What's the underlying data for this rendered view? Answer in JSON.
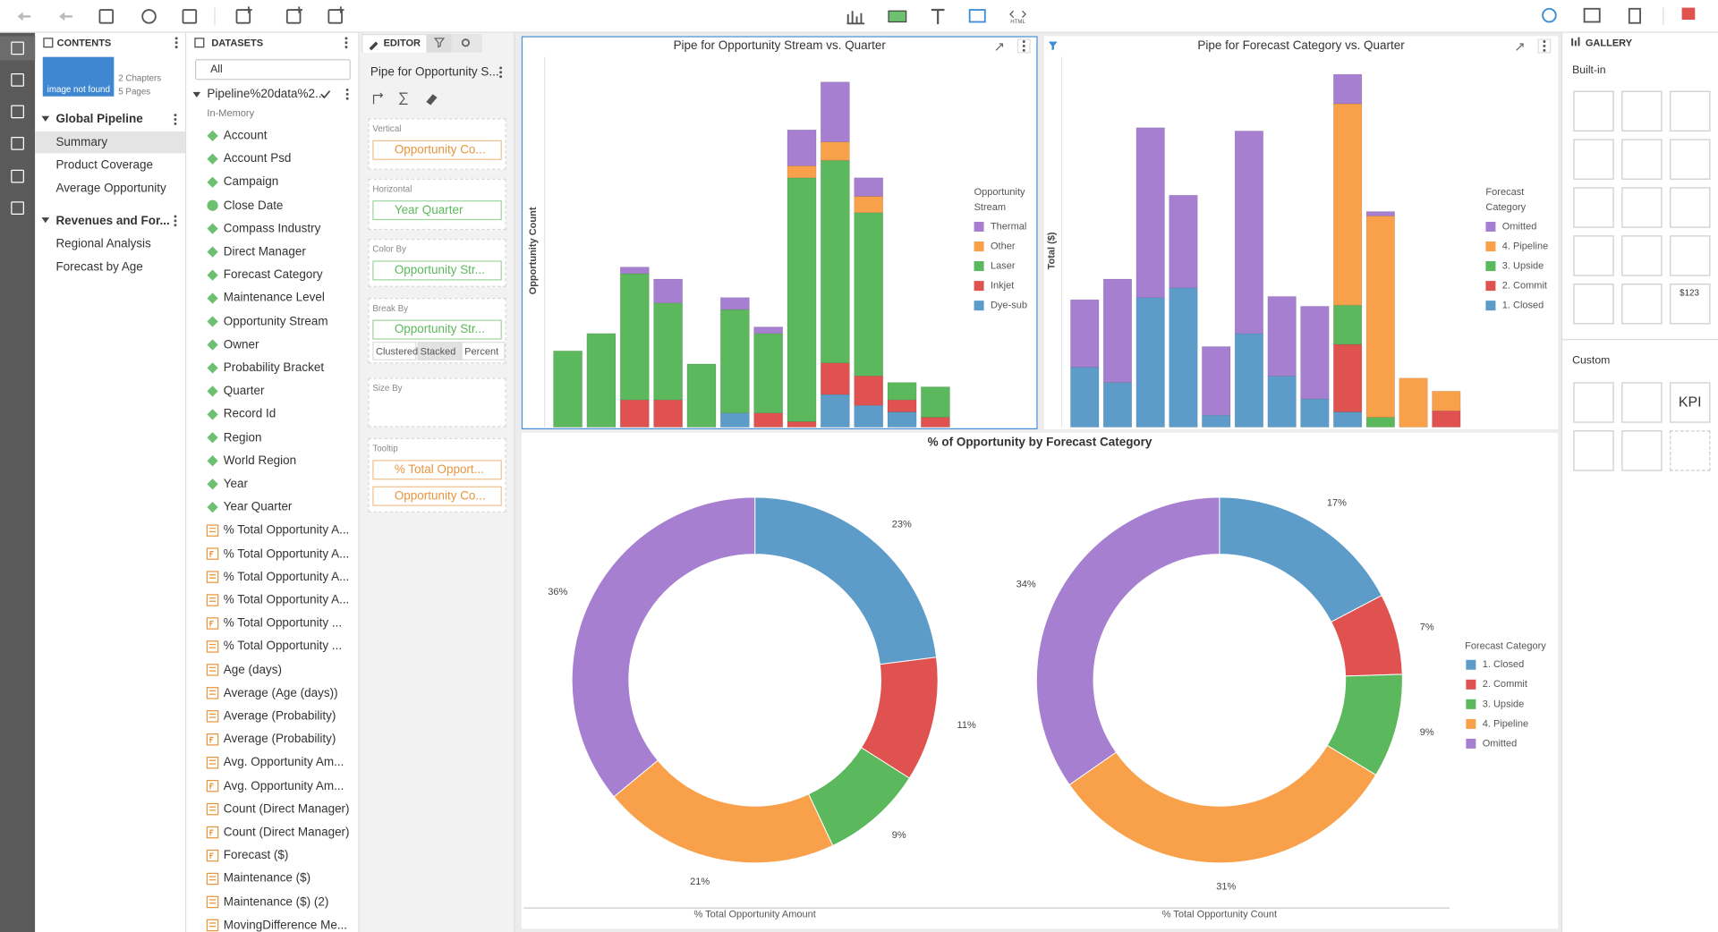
{
  "toolbar": {
    "html_label": "HTML"
  },
  "contents": {
    "title": "CONTENTS",
    "thumbnail": "image not found",
    "chapters_count": "2 Chapters",
    "pages_count": "5 Pages",
    "chapters": [
      {
        "name": "Global Pipeline",
        "pages": [
          "Summary",
          "Product Coverage",
          "Average Opportunity"
        ]
      },
      {
        "name": "Revenues and For...",
        "pages": [
          "Regional Analysis",
          "Forecast by Age"
        ]
      }
    ]
  },
  "datasets": {
    "title": "DATASETS",
    "filter": "All",
    "dataset": "Pipeline%20data%2...",
    "storage": "In-Memory",
    "fields": [
      {
        "name": "Account",
        "kind": "dimension"
      },
      {
        "name": "Account Psd",
        "kind": "dimension"
      },
      {
        "name": "Campaign",
        "kind": "dimension"
      },
      {
        "name": "Close Date",
        "kind": "date"
      },
      {
        "name": "Compass Industry",
        "kind": "dimension"
      },
      {
        "name": "Direct Manager",
        "kind": "dimension"
      },
      {
        "name": "Forecast Category",
        "kind": "dimension"
      },
      {
        "name": "Maintenance Level",
        "kind": "dimension"
      },
      {
        "name": "Opportunity Stream",
        "kind": "dimension"
      },
      {
        "name": "Owner",
        "kind": "dimension"
      },
      {
        "name": "Probability Bracket",
        "kind": "dimension"
      },
      {
        "name": "Quarter",
        "kind": "dimension"
      },
      {
        "name": "Record Id",
        "kind": "dimension"
      },
      {
        "name": "Region",
        "kind": "dimension"
      },
      {
        "name": "World Region",
        "kind": "dimension"
      },
      {
        "name": "Year",
        "kind": "dimension"
      },
      {
        "name": "Year Quarter",
        "kind": "dimension"
      },
      {
        "name": "% Total Opportunity A...",
        "kind": "measure"
      },
      {
        "name": "% Total Opportunity A...",
        "kind": "calc"
      },
      {
        "name": "% Total Opportunity A...",
        "kind": "measure"
      },
      {
        "name": "% Total Opportunity A...",
        "kind": "measure"
      },
      {
        "name": "% Total Opportunity ...",
        "kind": "calc"
      },
      {
        "name": "% Total Opportunity ...",
        "kind": "measure"
      },
      {
        "name": "Age (days)",
        "kind": "measure"
      },
      {
        "name": "Average (Age (days))",
        "kind": "measure"
      },
      {
        "name": "Average (Probability)",
        "kind": "measure"
      },
      {
        "name": "Average (Probability)",
        "kind": "calc"
      },
      {
        "name": "Avg. Opportunity Am...",
        "kind": "measure"
      },
      {
        "name": "Avg. Opportunity Am...",
        "kind": "calc"
      },
      {
        "name": "Count (Direct Manager)",
        "kind": "measure"
      },
      {
        "name": "Count (Direct Manager)",
        "kind": "calc"
      },
      {
        "name": "Forecast ($)",
        "kind": "calc"
      },
      {
        "name": "Maintenance ($)",
        "kind": "measure"
      },
      {
        "name": "Maintenance ($) (2)",
        "kind": "measure"
      },
      {
        "name": "MovingDifference Me...",
        "kind": "measure"
      }
    ]
  },
  "editor": {
    "title": "EDITOR",
    "chart_name": "Pipe for Opportunity S...",
    "sections": [
      {
        "label": "Vertical",
        "items": [
          {
            "text": "Opportunity Co...",
            "kind": "measure"
          }
        ]
      },
      {
        "label": "Horizontal",
        "items": [
          {
            "text": "Year Quarter",
            "kind": "dimension"
          }
        ]
      },
      {
        "label": "Color By",
        "items": [
          {
            "text": "Opportunity Str...",
            "kind": "dimension"
          }
        ]
      },
      {
        "label": "Break By",
        "items": [
          {
            "text": "Opportunity Str...",
            "kind": "dimension"
          }
        ],
        "modes": [
          "Clustered",
          "Stacked",
          "Percent"
        ],
        "selected_mode": 1
      },
      {
        "label": "Size By",
        "items": []
      },
      {
        "label": "Tooltip",
        "items": [
          {
            "text": "% Total Opport...",
            "kind": "calc"
          },
          {
            "text": "Opportunity Co...",
            "kind": "calc"
          }
        ]
      }
    ]
  },
  "gallery": {
    "title": "GALLERY",
    "builtin_label": "Built-in",
    "custom_label": "Custom",
    "kpi_label": "KPI",
    "value_tile_label": "$123"
  },
  "chart_data": [
    {
      "type": "bar",
      "stacked": true,
      "title": "Pipe for Opportunity Stream vs. Quarter",
      "y_label": "Opportunity Count",
      "legend_title": "Opportunity Stream",
      "categories": [
        null,
        null,
        null,
        null,
        null,
        null,
        null,
        null,
        null,
        null,
        null,
        null
      ],
      "ylim": [
        0,
        340
      ],
      "series": [
        {
          "name": "Thermal",
          "color": "#a77fd0",
          "values": [
            0,
            0,
            6,
            22,
            0,
            11,
            6,
            33,
            55,
            17,
            0,
            0
          ]
        },
        {
          "name": "Other",
          "color": "#f9a04a",
          "values": [
            0,
            0,
            0,
            0,
            0,
            0,
            0,
            11,
            17,
            15,
            0,
            0
          ]
        },
        {
          "name": "Laser",
          "color": "#5cb85c",
          "values": [
            70,
            86,
            116,
            89,
            58,
            95,
            73,
            224,
            186,
            150,
            16,
            28
          ]
        },
        {
          "name": "Inkjet",
          "color": "#e0524f",
          "values": [
            0,
            0,
            25,
            25,
            0,
            0,
            13,
            5,
            29,
            27,
            11,
            9
          ]
        },
        {
          "name": "Dye-sub",
          "color": "#5d9cc9",
          "values": [
            0,
            0,
            0,
            0,
            0,
            13,
            0,
            0,
            30,
            20,
            14,
            0
          ]
        }
      ]
    },
    {
      "type": "bar",
      "stacked": true,
      "title": "Pipe for Forecast Category vs. Quarter",
      "y_label": "Total ($)",
      "legend_title": "Forecast Category",
      "categories": [
        null,
        null,
        null,
        null,
        null,
        null,
        null,
        null,
        null,
        null,
        null,
        null
      ],
      "ylim": [
        0,
        340
      ],
      "series": [
        {
          "name": "Omitted",
          "color": "#a77fd0",
          "values": [
            62,
            95,
            156,
            85,
            63,
            186,
            73,
            85,
            27,
            4,
            0,
            0
          ]
        },
        {
          "name": "4. Pipeline",
          "color": "#f9a04a",
          "values": [
            0,
            0,
            0,
            0,
            0,
            0,
            0,
            0,
            185,
            185,
            45,
            18
          ]
        },
        {
          "name": "3. Upside",
          "color": "#5cb85c",
          "values": [
            0,
            0,
            0,
            0,
            0,
            0,
            0,
            0,
            36,
            9,
            0,
            0
          ]
        },
        {
          "name": "2. Commit",
          "color": "#e0524f",
          "values": [
            0,
            0,
            0,
            0,
            0,
            0,
            0,
            0,
            62,
            0,
            0,
            15
          ]
        },
        {
          "name": "1. Closed",
          "color": "#5d9cc9",
          "values": [
            55,
            41,
            119,
            128,
            11,
            86,
            47,
            26,
            14,
            0,
            0,
            0
          ]
        }
      ]
    },
    {
      "type": "donut",
      "title": "% of Opportunity by Forecast Category",
      "legend_title": "Forecast Category",
      "categories": [
        "1. Closed",
        "2. Commit",
        "3. Upside",
        "4. Pipeline",
        "Omitted"
      ],
      "colors": [
        "#5d9cc9",
        "#e0524f",
        "#5cb85c",
        "#f9a04a",
        "#a77fd0"
      ],
      "series": [
        {
          "name": "% Total Opportunity Amount",
          "values": [
            23,
            11,
            9,
            21,
            36
          ],
          "value_labels": [
            "23%",
            "11%",
            "9%",
            "21%",
            "36%"
          ]
        },
        {
          "name": "% Total Opportunity Count",
          "values": [
            17,
            7,
            9,
            31,
            34
          ],
          "value_labels": [
            "17%",
            "7%",
            "9%",
            "31%",
            "34%"
          ]
        }
      ]
    }
  ]
}
